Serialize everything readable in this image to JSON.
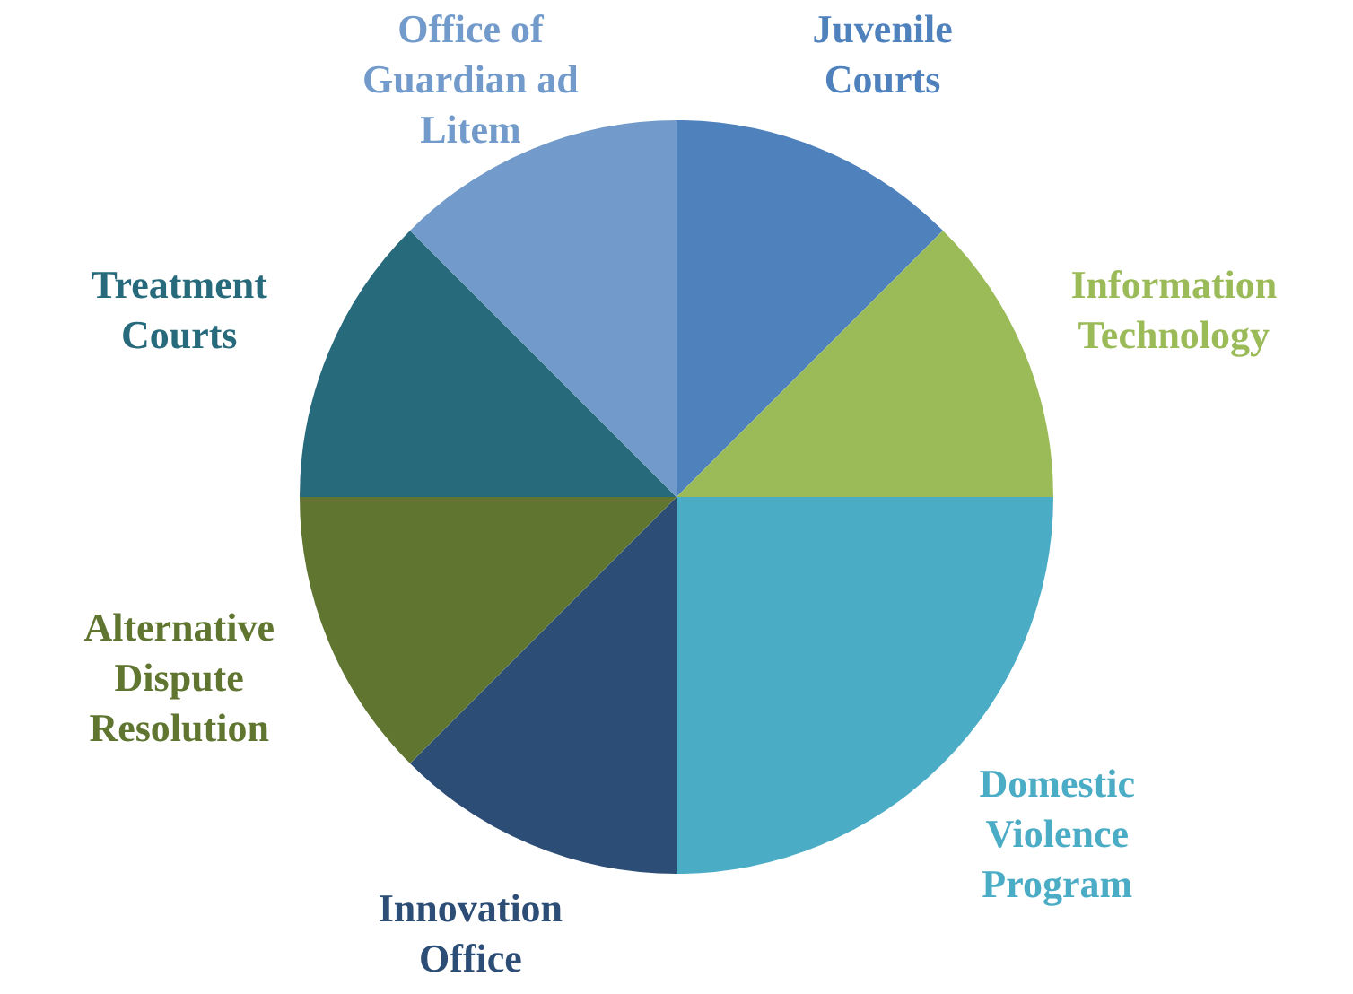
{
  "chart_data": {
    "type": "pie",
    "categories": [
      "Juvenile Courts",
      "Information Technology",
      "Domestic Violence Program",
      "Innovation Office",
      "Alternative Dispute Resolution",
      "Treatment Courts",
      "Office of Guardian ad Litem"
    ],
    "values": [
      12.5,
      12.5,
      25,
      12.5,
      12.5,
      12.5,
      12.5
    ],
    "colors": [
      "#4f81bd",
      "#9bbb59",
      "#4bacc6",
      "#2c4d75",
      "#5f7530",
      "#276a7c",
      "#729aca"
    ],
    "legend": false
  }
}
